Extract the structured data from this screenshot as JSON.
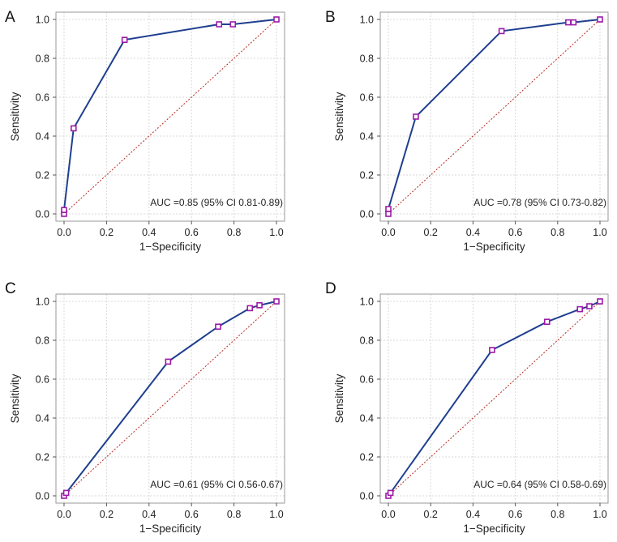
{
  "chart_data": [
    {
      "panel": "A",
      "type": "line",
      "series": [
        {
          "name": "ROC",
          "x": [
            0.0,
            0.0,
            0.045,
            0.285,
            0.73,
            0.795,
            1.0
          ],
          "y": [
            0.0,
            0.02,
            0.44,
            0.895,
            0.975,
            0.975,
            1.0
          ]
        }
      ],
      "reference_line": {
        "x": [
          0,
          1
        ],
        "y": [
          0,
          1
        ]
      },
      "xlabel": "1−Specificity",
      "ylabel": "Sensitivity",
      "xlim": [
        0,
        1
      ],
      "ylim": [
        0,
        1
      ],
      "xticks": [
        "0.0",
        "0.2",
        "0.4",
        "0.6",
        "0.8",
        "1.0"
      ],
      "yticks": [
        "0.0",
        "0.2",
        "0.4",
        "0.6",
        "0.8",
        "1.0"
      ],
      "annotation": "AUC =0.85 (95% CI 0.81-0.89)",
      "grid": true
    },
    {
      "panel": "B",
      "type": "line",
      "series": [
        {
          "name": "ROC",
          "x": [
            0.0,
            0.0,
            0.13,
            0.535,
            0.85,
            0.875,
            1.0
          ],
          "y": [
            0.0,
            0.025,
            0.5,
            0.94,
            0.985,
            0.985,
            1.0
          ]
        }
      ],
      "reference_line": {
        "x": [
          0,
          1
        ],
        "y": [
          0,
          1
        ]
      },
      "xlabel": "1−Specificity",
      "ylabel": "Sensitivity",
      "xlim": [
        0,
        1
      ],
      "ylim": [
        0,
        1
      ],
      "xticks": [
        "0.0",
        "0.2",
        "0.4",
        "0.6",
        "0.8",
        "1.0"
      ],
      "yticks": [
        "0.0",
        "0.2",
        "0.4",
        "0.6",
        "0.8",
        "1.0"
      ],
      "annotation": "AUC =0.78 (95% CI 0.73-0.82)",
      "grid": true
    },
    {
      "panel": "C",
      "type": "line",
      "series": [
        {
          "name": "ROC",
          "x": [
            0.0,
            0.01,
            0.49,
            0.725,
            0.875,
            0.92,
            1.0
          ],
          "y": [
            0.0,
            0.015,
            0.69,
            0.87,
            0.965,
            0.98,
            1.0
          ]
        }
      ],
      "reference_line": {
        "x": [
          0,
          1
        ],
        "y": [
          0,
          1
        ]
      },
      "xlabel": "1−Specificity",
      "ylabel": "Sensitivity",
      "xlim": [
        0,
        1
      ],
      "ylim": [
        0,
        1
      ],
      "xticks": [
        "0.0",
        "0.2",
        "0.4",
        "0.6",
        "0.8",
        "1.0"
      ],
      "yticks": [
        "0.0",
        "0.2",
        "0.4",
        "0.6",
        "0.8",
        "1.0"
      ],
      "annotation": "AUC =0.61 (95% CI 0.56-0.67)",
      "grid": true
    },
    {
      "panel": "D",
      "type": "line",
      "series": [
        {
          "name": "ROC",
          "x": [
            0.0,
            0.01,
            0.49,
            0.75,
            0.905,
            0.95,
            1.0
          ],
          "y": [
            0.0,
            0.015,
            0.75,
            0.895,
            0.96,
            0.975,
            1.0
          ]
        }
      ],
      "reference_line": {
        "x": [
          0,
          1
        ],
        "y": [
          0,
          1
        ]
      },
      "xlabel": "1−Specificity",
      "ylabel": "Sensitivity",
      "xlim": [
        0,
        1
      ],
      "ylim": [
        0,
        1
      ],
      "xticks": [
        "0.0",
        "0.2",
        "0.4",
        "0.6",
        "0.8",
        "1.0"
      ],
      "yticks": [
        "0.0",
        "0.2",
        "0.4",
        "0.6",
        "0.8",
        "1.0"
      ],
      "annotation": "AUC =0.64 (95% CI 0.58-0.69)",
      "grid": true
    }
  ],
  "colors": {
    "roc_line": "#1f3f8f",
    "roc_point": "#9c1aa8",
    "reference_line": "#b5291f",
    "grid": "#d9d9d9"
  }
}
